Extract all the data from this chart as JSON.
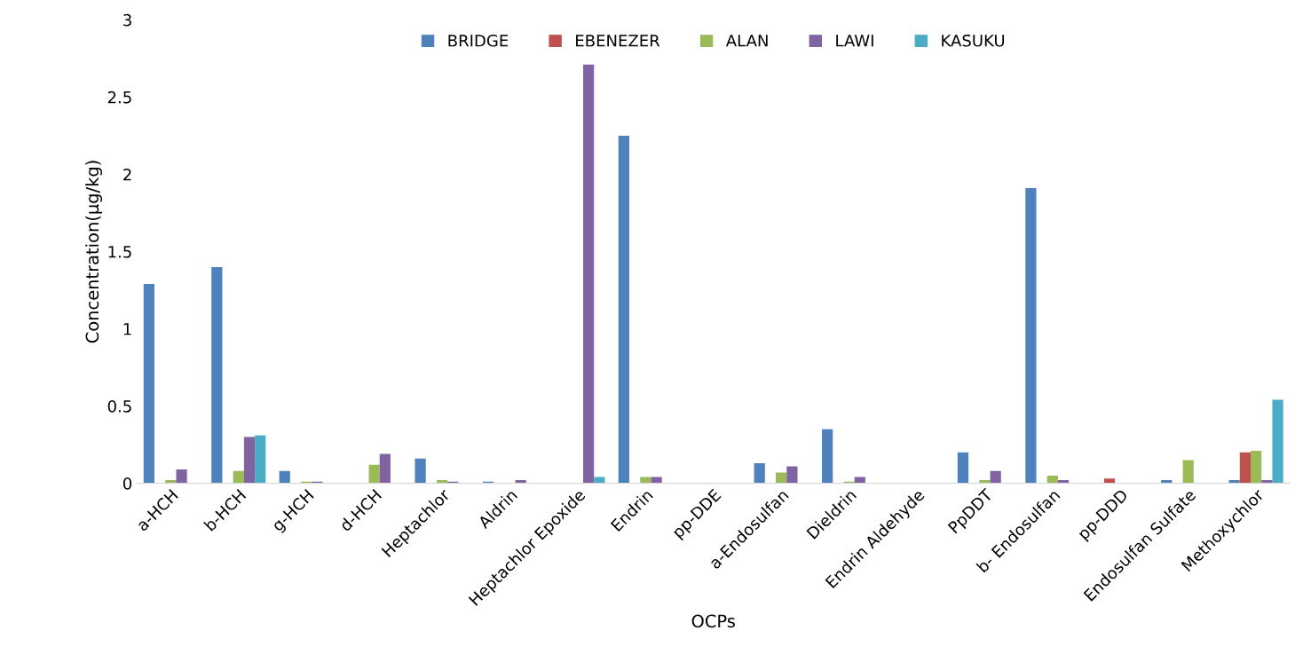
{
  "chart_data": {
    "type": "bar",
    "xlabel": "OCPs",
    "ylabel": "Concentration(µg/kg)",
    "categories": [
      "a-HCH",
      "b-HCH",
      "g-HCH",
      "d-HCH",
      "Heptachlor",
      "Aldrin",
      "Heptachlor Epoxide",
      "Endrin",
      "pp-DDE",
      "a-Endosulfan",
      "Dieldrin",
      "Endrin Aldehyde",
      "PpDDT",
      "b- Endosulfan",
      "pp-DDD",
      "Endosulfan Sulfate",
      "Methoxychlor"
    ],
    "series": [
      {
        "name": "BRIDGE",
        "color": "#4f81bd",
        "values": [
          1.29,
          1.4,
          0.08,
          0,
          0.16,
          0.01,
          0,
          2.25,
          0,
          0.13,
          0.35,
          0,
          0.2,
          1.91,
          0,
          0.02,
          0.02
        ]
      },
      {
        "name": "EBENEZER",
        "color": "#c0504d",
        "values": [
          0,
          0,
          0,
          0,
          0,
          0,
          0,
          0,
          0,
          0,
          0,
          0,
          0,
          0,
          0.03,
          0,
          0.2
        ]
      },
      {
        "name": "ALAN",
        "color": "#9bbb59",
        "values": [
          0.02,
          0.08,
          0.01,
          0.12,
          0.02,
          0,
          0,
          0.04,
          0,
          0.07,
          0.01,
          0,
          0.02,
          0.05,
          0,
          0.15,
          0.21
        ]
      },
      {
        "name": "LAWI",
        "color": "#8064a2",
        "values": [
          0.09,
          0.3,
          0.01,
          0.19,
          0.01,
          0.02,
          2.71,
          0.04,
          0,
          0.11,
          0.04,
          0,
          0.08,
          0.02,
          0,
          0,
          0.02
        ]
      },
      {
        "name": "KASUKU",
        "color": "#4bacc6",
        "values": [
          0,
          0.31,
          0,
          0,
          0,
          0,
          0.04,
          0,
          0,
          0,
          0,
          0,
          0,
          0,
          0,
          0,
          0.54
        ]
      }
    ],
    "ylim": [
      0,
      3
    ],
    "yticks": [
      0,
      0.5,
      1,
      1.5,
      2,
      2.5,
      3
    ],
    "grid": false,
    "legend": "top"
  }
}
